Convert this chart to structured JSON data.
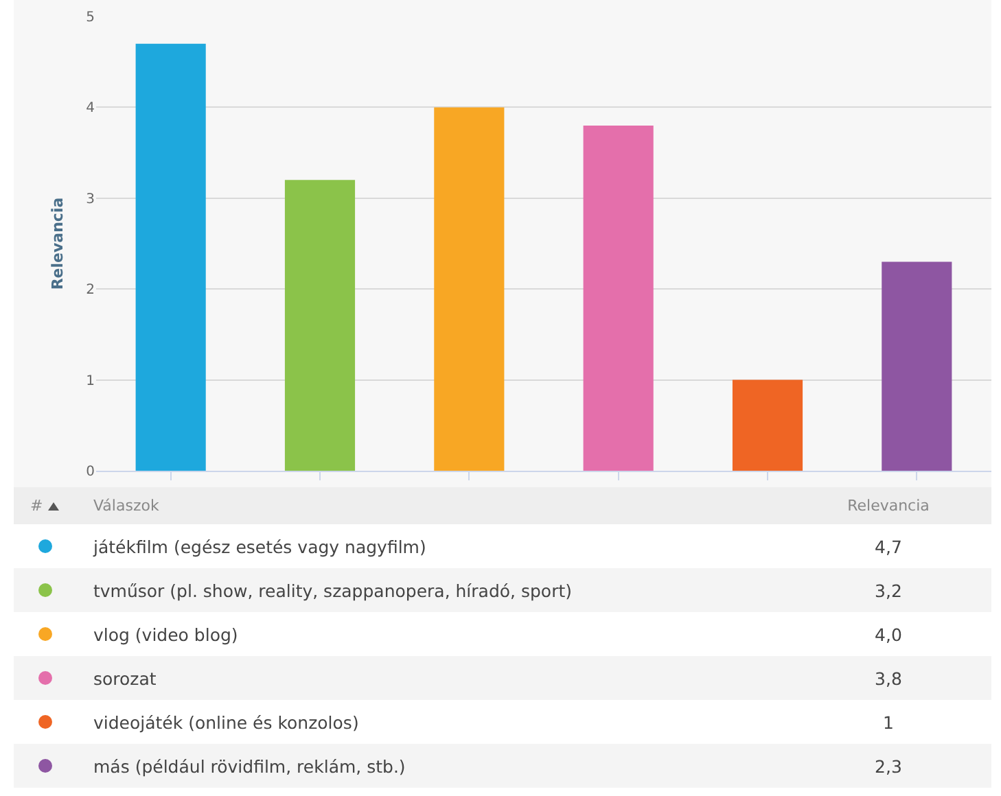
{
  "chart_data": {
    "type": "bar",
    "ylabel": "Relevancia",
    "categories": [
      null,
      null,
      null,
      null,
      null,
      null
    ],
    "series": [
      {
        "name": "játékfilm (egész esetés vagy nagyfilm)",
        "color": "#1ea8dd",
        "values": [
          4.7,
          null,
          null,
          null,
          null,
          null
        ]
      },
      {
        "name": "tvműsor (pl. show, reality, szappanopera, híradó, sport)",
        "color": "#8bc34a",
        "values": [
          null,
          3.2,
          null,
          null,
          null,
          null
        ]
      },
      {
        "name": "vlog (video blog)",
        "color": "#f8a724",
        "values": [
          null,
          null,
          4.0,
          null,
          null,
          null
        ]
      },
      {
        "name": "sorozat",
        "color": "#e46fab",
        "values": [
          null,
          null,
          null,
          3.8,
          null,
          null
        ]
      },
      {
        "name": "videojáték (online és konzolos)",
        "color": "#ef6524",
        "values": [
          null,
          null,
          null,
          null,
          1,
          null
        ]
      },
      {
        "name": "más (például rövidfilm, reklám, stb.)",
        "color": "#8e56a2",
        "values": [
          null,
          null,
          null,
          null,
          null,
          2.3
        ]
      }
    ],
    "ylim": [
      0,
      5
    ],
    "yticks": [
      0,
      1,
      2,
      3,
      4,
      5
    ],
    "grid": "y",
    "tick_labels": "y",
    "legend": "bottom",
    "annotations": [
      "#",
      "Válaszok",
      "Relevancia",
      "4,7",
      "3,2",
      "4,0",
      "3,8",
      "1",
      "2,3"
    ]
  }
}
